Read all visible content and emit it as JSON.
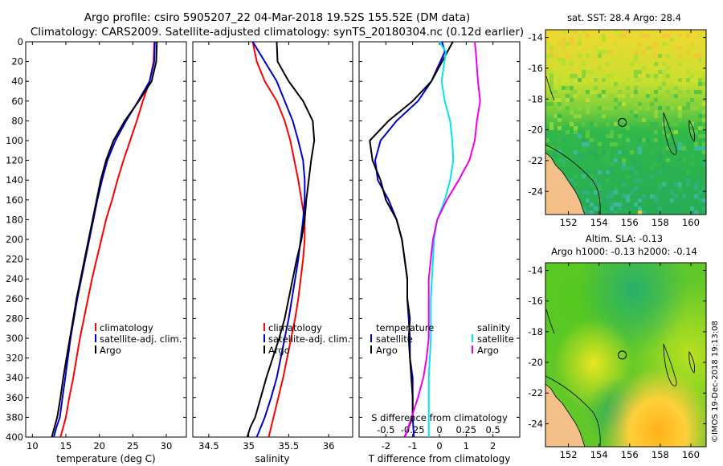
{
  "title": {
    "line1": "Argo profile: csiro 5905207_22 04-Mar-2018 19.52S 155.52E (DM data)",
    "line2": "Climatology: CARS2009. Satellite-adjusted climatology: synTS_20180304.nc (0.12d earlier)"
  },
  "colors": {
    "climatology": "#ff0000",
    "satellite": "#0000cc",
    "argo": "#000000",
    "s_satellite": "#00e5ee",
    "s_argo": "#ee00ee",
    "land": "#f4c08a"
  },
  "chart_data": [
    {
      "type": "line",
      "title": "",
      "xlabel": "temperature (deg C)",
      "ylabel": "",
      "xlim": [
        9,
        33
      ],
      "ylim": [
        400,
        0
      ],
      "xticks": [
        10,
        15,
        20,
        25,
        30
      ],
      "yticks": [
        0,
        20,
        40,
        60,
        80,
        100,
        120,
        140,
        160,
        180,
        200,
        220,
        240,
        260,
        280,
        300,
        320,
        340,
        360,
        380,
        400
      ],
      "legend": [
        "climatology",
        "satellite-adj. clim.",
        "Argo"
      ],
      "series": [
        {
          "name": "climatology",
          "x": [
            28.2,
            28.1,
            27.5,
            26.5,
            25.6,
            24.6,
            23.6,
            22.7,
            21.9,
            21.0,
            20.3,
            19.6,
            18.9,
            18.3,
            17.7,
            17.1,
            16.6,
            16.1,
            15.5,
            15.0,
            14.6,
            14.2
          ],
          "y": [
            0,
            20,
            40,
            60,
            80,
            100,
            120,
            140,
            160,
            180,
            200,
            220,
            240,
            260,
            280,
            300,
            320,
            340,
            360,
            380,
            390,
            400
          ]
        },
        {
          "name": "satellite-adj. clim.",
          "x": [
            28.3,
            28.2,
            27.5,
            25.8,
            24.0,
            22.4,
            21.2,
            20.4,
            19.7,
            19.1,
            18.5,
            17.9,
            17.3,
            16.7,
            16.2,
            15.7,
            15.3,
            14.9,
            14.5,
            14.1,
            13.6,
            13.2
          ],
          "y": [
            0,
            20,
            40,
            60,
            80,
            100,
            120,
            140,
            160,
            180,
            200,
            220,
            240,
            260,
            280,
            300,
            320,
            340,
            360,
            380,
            390,
            400
          ]
        },
        {
          "name": "Argo",
          "x": [
            28.6,
            28.5,
            27.8,
            25.9,
            23.8,
            22.1,
            21.0,
            20.2,
            19.6,
            19.0,
            18.4,
            17.8,
            17.2,
            16.6,
            16.1,
            15.6,
            15.1,
            14.6,
            14.2,
            13.7,
            13.3,
            12.9
          ],
          "y": [
            0,
            20,
            40,
            60,
            80,
            100,
            120,
            140,
            160,
            180,
            200,
            220,
            240,
            260,
            280,
            300,
            320,
            340,
            360,
            380,
            390,
            400
          ]
        }
      ]
    },
    {
      "type": "line",
      "title": "",
      "xlabel": "salinity",
      "ylabel": "",
      "xlim": [
        34.3,
        36.3
      ],
      "ylim": [
        400,
        0
      ],
      "xticks": [
        "34.5",
        "35",
        "35.5",
        "36"
      ],
      "xtick_values": [
        34.5,
        35.0,
        35.5,
        36.0
      ],
      "legend": [
        "climatology",
        "satellite-adj. clim.",
        "Argo"
      ],
      "series": [
        {
          "name": "climatology",
          "x": [
            35.05,
            35.1,
            35.2,
            35.35,
            35.45,
            35.52,
            35.57,
            35.62,
            35.66,
            35.7,
            35.7,
            35.68,
            35.65,
            35.62,
            35.58,
            35.53,
            35.48,
            35.43,
            35.37,
            35.31,
            35.28,
            35.25
          ],
          "y": [
            0,
            20,
            40,
            60,
            80,
            100,
            120,
            140,
            160,
            180,
            200,
            220,
            240,
            260,
            280,
            300,
            320,
            340,
            360,
            380,
            390,
            400
          ]
        },
        {
          "name": "satellite-adj. clim.",
          "x": [
            35.05,
            35.2,
            35.35,
            35.45,
            35.55,
            35.62,
            35.68,
            35.7,
            35.7,
            35.68,
            35.65,
            35.62,
            35.58,
            35.54,
            35.5,
            35.45,
            35.4,
            35.35,
            35.28,
            35.2,
            35.15,
            35.1
          ],
          "y": [
            0,
            20,
            40,
            60,
            80,
            100,
            120,
            140,
            160,
            180,
            200,
            220,
            240,
            260,
            280,
            300,
            320,
            340,
            360,
            380,
            390,
            400
          ]
        },
        {
          "name": "Argo",
          "x": [
            35.35,
            35.36,
            35.5,
            35.68,
            35.8,
            35.82,
            35.78,
            35.75,
            35.72,
            35.7,
            35.66,
            35.6,
            35.55,
            35.5,
            35.45,
            35.38,
            35.3,
            35.22,
            35.15,
            35.08,
            35.02,
            34.98
          ],
          "y": [
            0,
            20,
            40,
            60,
            80,
            100,
            120,
            140,
            160,
            180,
            200,
            220,
            240,
            260,
            280,
            300,
            320,
            340,
            360,
            380,
            390,
            400
          ]
        }
      ]
    },
    {
      "type": "line",
      "title": "S difference from climatology",
      "xlabel": "T difference from climatology",
      "ylabel": "",
      "xlim": [
        -3,
        3
      ],
      "ylim": [
        400,
        0
      ],
      "xticks": [
        "-2",
        "-1",
        "0",
        "1",
        "2"
      ],
      "xtick_values": [
        -2,
        -1,
        0,
        1,
        2
      ],
      "s_xlim": [
        -0.75,
        0.75
      ],
      "s_xticks": [
        "-0.5",
        "-0.25",
        "0",
        "0.25",
        "0.5"
      ],
      "s_xtick_values": [
        -0.5,
        -0.25,
        0,
        0.25,
        0.5
      ],
      "legend_temperature": {
        "heading": "temperature",
        "items": [
          "satellite",
          "Argo"
        ]
      },
      "legend_salinity": {
        "heading": "salinity",
        "items": [
          "satellite",
          "Argo"
        ]
      },
      "series": [
        {
          "name": "temperature satellite",
          "axis": "T",
          "x": [
            0.1,
            0.2,
            -0.3,
            -0.8,
            -1.6,
            -2.2,
            -2.4,
            -2.3,
            -1.9,
            -1.6,
            -1.4,
            -1.3,
            -1.2,
            -1.2,
            -1.15,
            -1.1,
            -1.1,
            -1.0,
            -1.0,
            -1.0,
            -0.95
          ],
          "y": [
            0,
            10,
            40,
            60,
            80,
            100,
            120,
            140,
            160,
            180,
            200,
            220,
            240,
            260,
            280,
            300,
            320,
            340,
            360,
            380,
            400
          ]
        },
        {
          "name": "temperature Argo",
          "axis": "T",
          "x": [
            0.5,
            0.3,
            -0.3,
            -1.0,
            -1.9,
            -2.6,
            -2.5,
            -2.2,
            -2.0,
            -1.6,
            -1.4,
            -1.3,
            -1.2,
            -1.2,
            -1.1,
            -1.15,
            -1.1,
            -1.05,
            -1.0,
            -1.0,
            -1.3
          ],
          "y": [
            0,
            10,
            40,
            60,
            80,
            100,
            120,
            140,
            160,
            180,
            200,
            220,
            240,
            260,
            280,
            300,
            320,
            340,
            360,
            380,
            400
          ]
        },
        {
          "name": "salinity satellite",
          "axis": "S",
          "x": [
            0.0,
            0.06,
            0.02,
            0.05,
            0.1,
            0.12,
            0.13,
            0.1,
            0.05,
            -0.02,
            -0.05,
            -0.06,
            -0.07,
            -0.08,
            -0.08,
            -0.08,
            -0.09,
            -0.1,
            -0.1,
            -0.1,
            -0.1
          ],
          "y": [
            0,
            10,
            40,
            60,
            80,
            100,
            120,
            140,
            160,
            180,
            200,
            220,
            240,
            260,
            280,
            300,
            320,
            340,
            360,
            380,
            400
          ]
        },
        {
          "name": "salinity Argo",
          "axis": "S",
          "x": [
            0.33,
            0.34,
            0.36,
            0.38,
            0.35,
            0.33,
            0.28,
            0.18,
            0.07,
            -0.02,
            -0.06,
            -0.08,
            -0.1,
            -0.1,
            -0.1,
            -0.1,
            -0.12,
            -0.15,
            -0.2,
            -0.26,
            -0.32
          ],
          "y": [
            0,
            10,
            40,
            60,
            80,
            100,
            120,
            140,
            160,
            180,
            200,
            220,
            240,
            260,
            280,
            300,
            320,
            340,
            360,
            380,
            400
          ]
        }
      ]
    },
    {
      "type": "heatmap",
      "title": "sat. SST: 28.4 Argo: 28.4",
      "xlim": [
        150.5,
        161
      ],
      "ylim": [
        -25.5,
        -13.5
      ],
      "xticks": [
        152,
        154,
        156,
        158,
        160
      ],
      "yticks": [
        -14,
        -16,
        -18,
        -20,
        -22,
        -24
      ],
      "marker": {
        "lon": 155.52,
        "lat": -19.52
      }
    },
    {
      "type": "heatmap",
      "title_line1": "Altim. SLA: -0.13",
      "title_line2": "Argo h1000: -0.13 h2000: -0.14",
      "xlim": [
        150.5,
        161
      ],
      "ylim": [
        -25.5,
        -13.5
      ],
      "xticks": [
        152,
        154,
        156,
        158,
        160
      ],
      "yticks": [
        -14,
        -16,
        -18,
        -20,
        -22,
        -24
      ],
      "marker": {
        "lon": 155.52,
        "lat": -19.52
      }
    }
  ],
  "stamp": "©IMOS 19-Dec-2018 19:13:08"
}
